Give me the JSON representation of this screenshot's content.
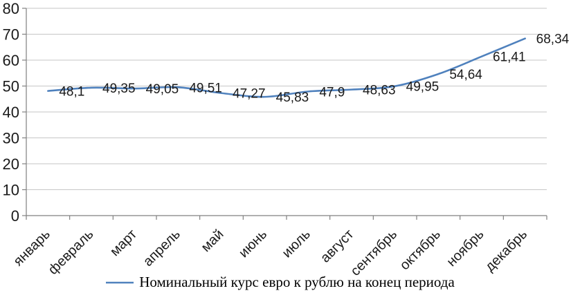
{
  "chart_data": {
    "type": "line",
    "title": "",
    "xlabel": "",
    "ylabel": "",
    "categories": [
      "январь",
      "февраль",
      "март",
      "апрель",
      "май",
      "июнь",
      "июль",
      "август",
      "сентябрь",
      "октябрь",
      "ноябрь",
      "декабрь"
    ],
    "series": [
      {
        "name": "Номинальный курс евро к рублю на конец периода",
        "values": [
          48.1,
          49.35,
          49.05,
          49.51,
          47.27,
          45.83,
          47.9,
          48.63,
          49.95,
          54.64,
          61.41,
          68.34
        ]
      }
    ],
    "data_labels": [
      "48,1",
      "49,35",
      "49,05",
      "49,51",
      "47,27",
      "45,83",
      "47,9",
      "48,63",
      "49,95",
      "54,64",
      "61,41",
      "68,34"
    ],
    "y_ticks": [
      0,
      10,
      20,
      30,
      40,
      50,
      60,
      70,
      80
    ],
    "y_tick_labels": [
      "0",
      "10",
      "20",
      "30",
      "40",
      "50",
      "60",
      "70",
      "80"
    ],
    "ylim": [
      0,
      80
    ],
    "grid": true,
    "smoothed_line": true,
    "legend_position": "bottom",
    "legend_label": "Номинальный курс евро к рублю на конец периода",
    "colors": {
      "line": "#4F81BD",
      "gridline": "#C6C6C6",
      "axis": "#808080",
      "label_text": "#1a1a1a"
    }
  }
}
